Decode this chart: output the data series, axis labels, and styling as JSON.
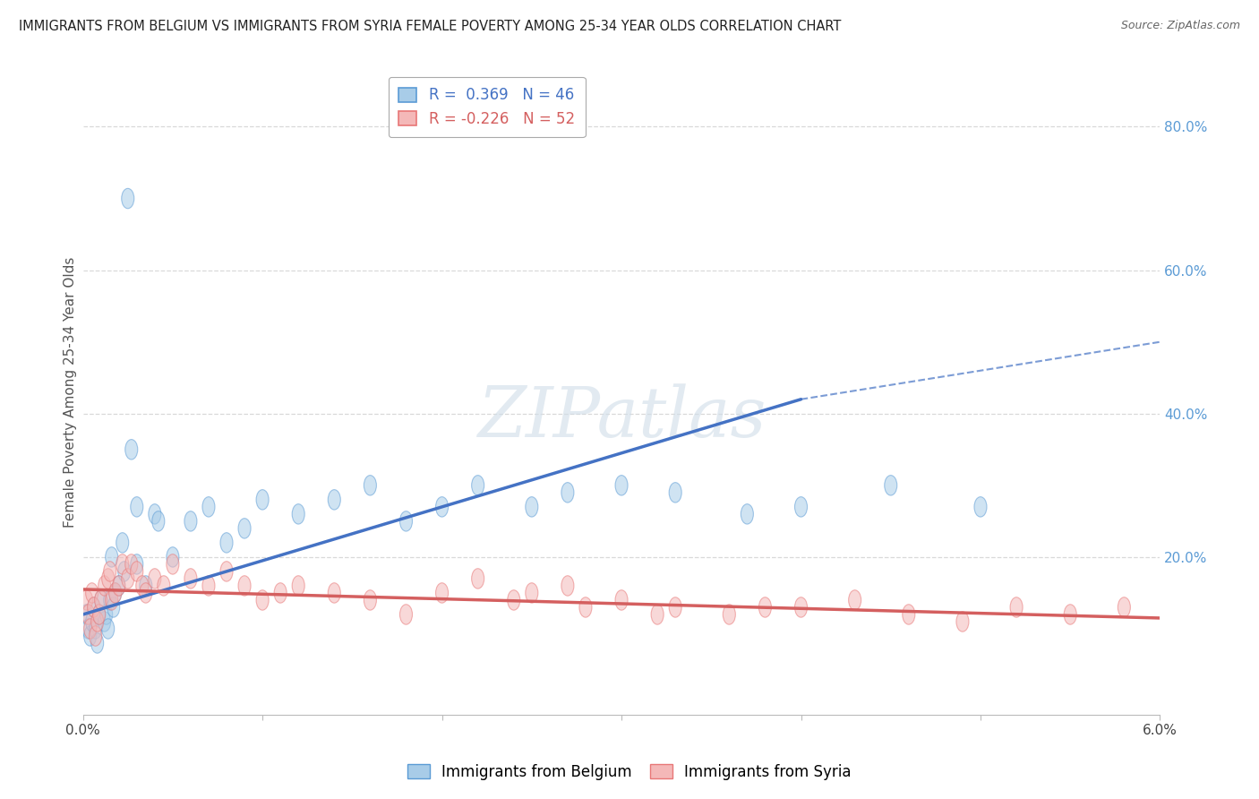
{
  "title": "IMMIGRANTS FROM BELGIUM VS IMMIGRANTS FROM SYRIA FEMALE POVERTY AMONG 25-34 YEAR OLDS CORRELATION CHART",
  "source": "Source: ZipAtlas.com",
  "ylabel": "Female Poverty Among 25-34 Year Olds",
  "legend_entry1": "R =  0.369   N = 46",
  "legend_entry2": "R = -0.226   N = 52",
  "legend_label1": "Immigrants from Belgium",
  "legend_label2": "Immigrants from Syria",
  "belgium_color": "#a8cce8",
  "syria_color": "#f4b8b8",
  "belgium_edge_color": "#5b9bd5",
  "syria_edge_color": "#e87777",
  "belgium_line_color": "#4472c4",
  "syria_line_color": "#d45f5f",
  "watermark": "ZIPatlas",
  "xmin": 0.0,
  "xmax": 0.06,
  "ymin": -0.02,
  "ymax": 0.88,
  "yticks": [
    0.0,
    0.2,
    0.4,
    0.6,
    0.8
  ],
  "ytick_labels": [
    "",
    "20.0%",
    "40.0%",
    "60.0%",
    "80.0%"
  ],
  "gridline_color": "#d9d9d9",
  "background_color": "#ffffff",
  "belgium_x": [
    0.0002,
    0.0003,
    0.0004,
    0.0005,
    0.0006,
    0.0007,
    0.0008,
    0.0009,
    0.001,
    0.0012,
    0.0013,
    0.0014,
    0.0015,
    0.0016,
    0.0017,
    0.0018,
    0.002,
    0.0022,
    0.0023,
    0.0025,
    0.0027,
    0.003,
    0.003,
    0.0035,
    0.004,
    0.0042,
    0.005,
    0.006,
    0.007,
    0.008,
    0.009,
    0.01,
    0.012,
    0.014,
    0.016,
    0.018,
    0.02,
    0.022,
    0.025,
    0.027,
    0.03,
    0.033,
    0.037,
    0.04,
    0.045,
    0.05
  ],
  "belgium_y": [
    0.12,
    0.1,
    0.09,
    0.11,
    0.13,
    0.1,
    0.08,
    0.12,
    0.14,
    0.11,
    0.12,
    0.1,
    0.14,
    0.2,
    0.13,
    0.15,
    0.16,
    0.22,
    0.18,
    0.7,
    0.35,
    0.19,
    0.27,
    0.16,
    0.26,
    0.25,
    0.2,
    0.25,
    0.27,
    0.22,
    0.24,
    0.28,
    0.26,
    0.28,
    0.3,
    0.25,
    0.27,
    0.3,
    0.27,
    0.29,
    0.3,
    0.29,
    0.26,
    0.27,
    0.3,
    0.27
  ],
  "syria_x": [
    0.0002,
    0.0003,
    0.0004,
    0.0005,
    0.0006,
    0.0007,
    0.0008,
    0.0009,
    0.001,
    0.0012,
    0.0014,
    0.0015,
    0.0016,
    0.0018,
    0.002,
    0.0022,
    0.0025,
    0.0027,
    0.003,
    0.0033,
    0.0035,
    0.004,
    0.0045,
    0.005,
    0.006,
    0.007,
    0.008,
    0.009,
    0.01,
    0.011,
    0.012,
    0.014,
    0.016,
    0.018,
    0.02,
    0.022,
    0.025,
    0.027,
    0.03,
    0.033,
    0.036,
    0.04,
    0.043,
    0.046,
    0.049,
    0.052,
    0.055,
    0.058,
    0.024,
    0.028,
    0.032,
    0.038
  ],
  "syria_y": [
    0.14,
    0.12,
    0.1,
    0.15,
    0.13,
    0.09,
    0.11,
    0.12,
    0.14,
    0.16,
    0.17,
    0.18,
    0.14,
    0.15,
    0.16,
    0.19,
    0.17,
    0.19,
    0.18,
    0.16,
    0.15,
    0.17,
    0.16,
    0.19,
    0.17,
    0.16,
    0.18,
    0.16,
    0.14,
    0.15,
    0.16,
    0.15,
    0.14,
    0.12,
    0.15,
    0.17,
    0.15,
    0.16,
    0.14,
    0.13,
    0.12,
    0.13,
    0.14,
    0.12,
    0.11,
    0.13,
    0.12,
    0.13,
    0.14,
    0.13,
    0.12,
    0.13
  ]
}
